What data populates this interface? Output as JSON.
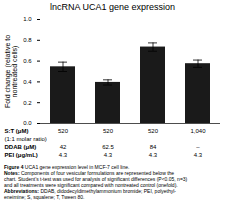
{
  "chart_data": {
    "type": "bar",
    "title": "lncRNA UCA1 gene expression",
    "ylabel": "Fold change (relative to\nnontreated cells)",
    "categories": [
      null,
      null,
      null,
      null
    ],
    "values": [
      0.545,
      0.395,
      0.735,
      0.575
    ],
    "errors": [
      0.045,
      0.025,
      0.04,
      0.035
    ],
    "color": "#1a1a1a",
    "ylim": [
      0,
      1.0
    ],
    "yticks": [
      {
        "value": 0,
        "label": "0.0"
      },
      0.2,
      0.4,
      0.6,
      0.8,
      {
        "value": 1,
        "label": "1.0"
      }
    ],
    "grid": false,
    "tick_labels": "y",
    "table": {
      "rows": [
        [
          "S:T (μM)",
          "520",
          "520",
          "520",
          "1,040"
        ],
        [
          "(1:1 molar ratio)",
          null,
          null,
          null,
          null
        ],
        [
          "DDAB (μM)",
          "42",
          "62.5",
          "84",
          "–"
        ],
        [
          "PEI (μg/mL)",
          "4.3",
          "4.3",
          "4.3",
          "4.3"
        ]
      ],
      "bold": [
        "S:T (μM)",
        "DDAB (μM)",
        "PEI (μg/mL)"
      ]
    },
    "notes": [
      {
        "bold": "Figure 4",
        "text": " UCA1 gene expression level in MCF-7 cell line."
      },
      {
        "bold": "Notes:",
        "text": " Components of four vesicular formulations are represented below the"
      },
      "chart. Student’s t-test was used for analysis of significant differences (P<0.05, n=3)",
      "and all treatments were significant compared with nontreated control (onefold).",
      {
        "bold": "Abbreviations:",
        "text": " DDAB, didodecyldimethylammonium bromide; PEI, polyethyl-"
      },
      "eneimine; S, squalene; T, Tween 80."
    ]
  }
}
